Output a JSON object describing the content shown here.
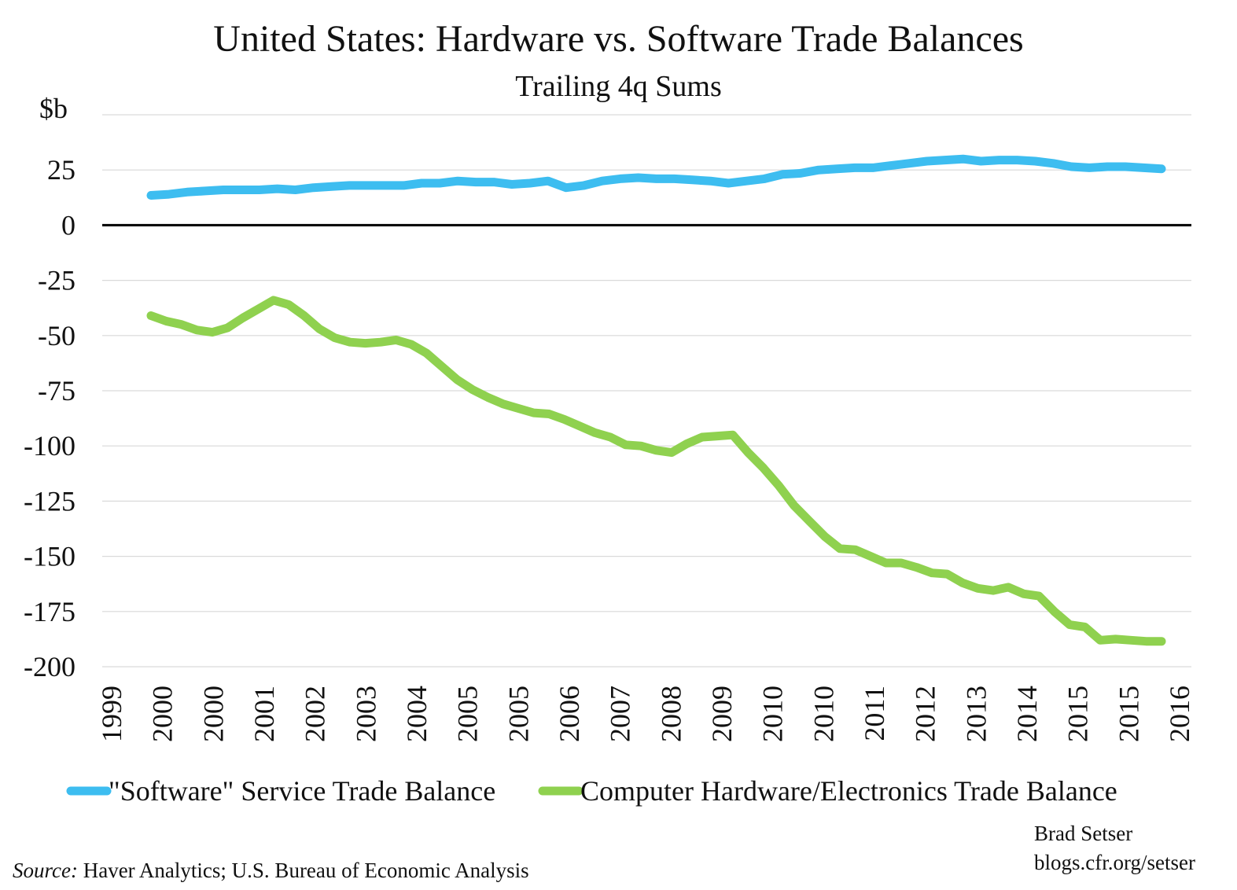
{
  "chart_data": {
    "type": "line",
    "title": "United States: Hardware vs. Software Trade Balances",
    "subtitle": "Trailing 4q Sums",
    "ylabel": "$b",
    "xlabel": "",
    "ylim": [
      -200,
      50
    ],
    "yticks": [
      25,
      0,
      -25,
      -50,
      -75,
      -100,
      -125,
      -150,
      -175,
      -200
    ],
    "x_tick_labels": [
      "1999",
      "2000",
      "2000",
      "2001",
      "2002",
      "2003",
      "2004",
      "2005",
      "2005",
      "2006",
      "2007",
      "2008",
      "2009",
      "2010",
      "2010",
      "2011",
      "2012",
      "2013",
      "2014",
      "2015",
      "2015",
      "2016"
    ],
    "grid": true,
    "legend_position": "bottom",
    "colors": {
      "software": "#3dbdf0",
      "hardware": "#8fd14f",
      "zero_line": "#000000",
      "grid": "#d9d9d9"
    },
    "series": [
      {
        "name": "\"Software\" Service Trade Balance",
        "values": [
          13.5,
          14,
          15,
          15.5,
          16,
          16,
          16,
          16.5,
          16,
          17,
          17.5,
          18,
          18,
          18,
          18,
          19,
          19,
          20,
          19.5,
          19.5,
          18.5,
          19,
          20,
          17,
          18,
          20,
          21,
          21.5,
          21,
          21,
          20.5,
          20,
          19,
          20,
          21,
          23,
          23.5,
          25,
          25.5,
          26,
          26,
          27,
          28,
          29,
          29.5,
          30,
          29,
          29.5,
          29.5,
          29,
          28,
          26.5,
          26,
          26.5,
          26.5,
          26,
          25.5
        ]
      },
      {
        "name": "Computer Hardware/Electronics Trade Balance",
        "values": [
          -41,
          -43.5,
          -45,
          -47.5,
          -48.5,
          -46.5,
          -42,
          -38,
          -34,
          -36,
          -41,
          -47,
          -51,
          -53,
          -53.5,
          -53,
          -52,
          -54,
          -58,
          -64,
          -70,
          -74.5,
          -78,
          -81,
          -83,
          -85,
          -85.5,
          -88,
          -91,
          -94,
          -96,
          -99.5,
          -100,
          -102,
          -103,
          -99,
          -96,
          -95.5,
          -95,
          -103,
          -110,
          -118,
          -127,
          -134,
          -141,
          -146.5,
          -147,
          -150,
          -153,
          -153,
          -155,
          -157.5,
          -158,
          -162,
          -164.5,
          -165.5,
          -164,
          -167,
          -168,
          -175,
          -181,
          -182,
          -188,
          -187.5,
          -188,
          -188.5,
          -188.5
        ]
      }
    ]
  },
  "source": {
    "label": "Source:",
    "text": "Haver Analytics; U.S. Bureau of Economic Analysis"
  },
  "credit": {
    "name": "Brad Setser",
    "url": "blogs.cfr.org/setser"
  }
}
